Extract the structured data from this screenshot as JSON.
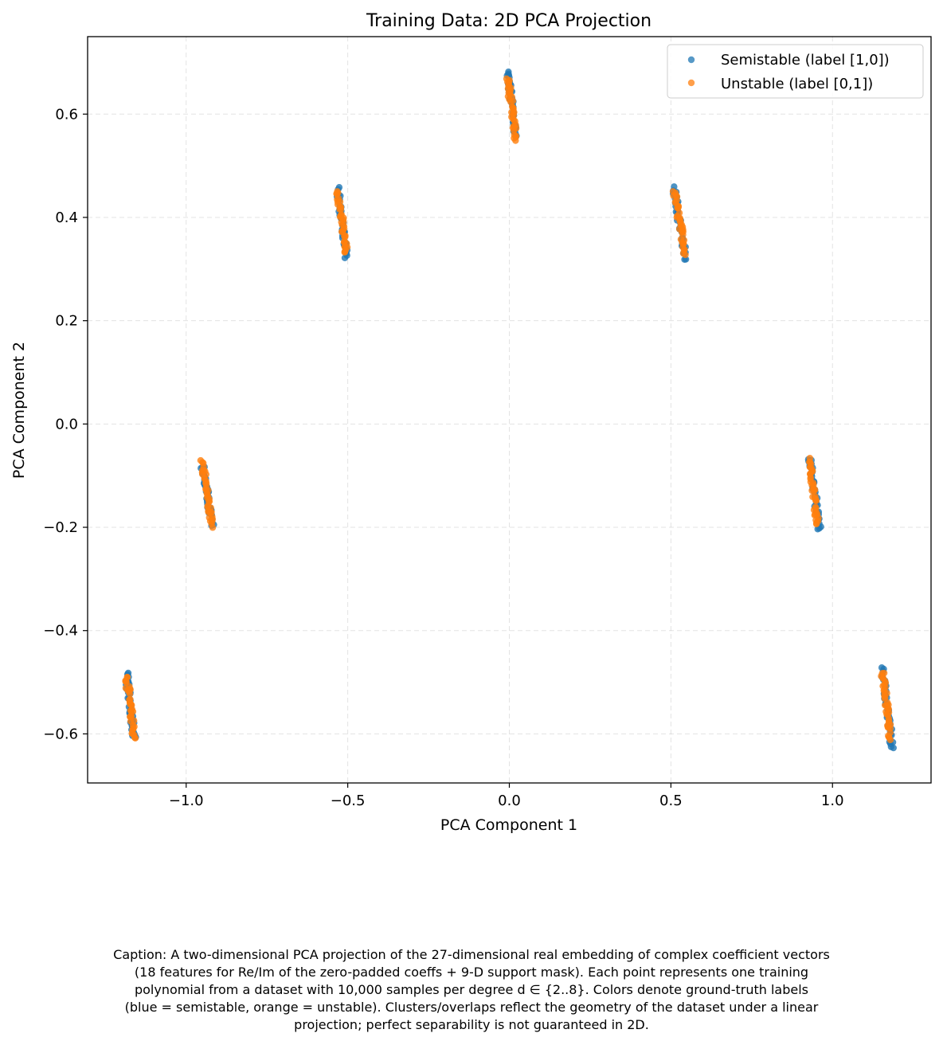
{
  "chart_data": {
    "type": "scatter",
    "title": "Training Data: 2D PCA Projection",
    "xlabel": "PCA Component 1",
    "ylabel": "PCA Component 2",
    "xlim": [
      -1.305,
      1.305
    ],
    "ylim": [
      -0.695,
      0.75
    ],
    "xticks": [
      -1.0,
      -0.5,
      0.0,
      0.5,
      1.0
    ],
    "xtick_labels": [
      "−1.0",
      "−0.5",
      "0.0",
      "0.5",
      "1.0"
    ],
    "yticks": [
      -0.6,
      -0.4,
      -0.2,
      0.0,
      0.2,
      0.4,
      0.6
    ],
    "ytick_labels": [
      "−0.6",
      "−0.4",
      "−0.2",
      "0.0",
      "0.2",
      "0.4",
      "0.6"
    ],
    "grid": true,
    "legend_position": "top-right",
    "series": [
      {
        "name": "Semistable (label [1,0])",
        "color": "#1f77b4",
        "clusters": [
          {
            "x_start": -0.005,
            "y_start": 0.68,
            "x_end": 0.02,
            "y_end": 0.56
          },
          {
            "x_start": 0.51,
            "y_start": 0.455,
            "x_end": 0.545,
            "y_end": 0.32
          },
          {
            "x_start": 0.93,
            "y_start": -0.065,
            "x_end": 0.96,
            "y_end": -0.205
          },
          {
            "x_start": 1.155,
            "y_start": -0.475,
            "x_end": 1.185,
            "y_end": -0.628
          },
          {
            "x_start": -1.185,
            "y_start": -0.485,
            "x_end": -1.16,
            "y_end": -0.605
          },
          {
            "x_start": -0.95,
            "y_start": -0.08,
            "x_end": -0.92,
            "y_end": -0.195
          },
          {
            "x_start": -0.53,
            "y_start": 0.455,
            "x_end": -0.505,
            "y_end": 0.325
          }
        ]
      },
      {
        "name": "Unstable (label [0,1])",
        "color": "#ff7f0e",
        "clusters": [
          {
            "x_start": -0.005,
            "y_start": 0.67,
            "x_end": 0.02,
            "y_end": 0.55
          },
          {
            "x_start": 0.51,
            "y_start": 0.45,
            "x_end": 0.545,
            "y_end": 0.33
          },
          {
            "x_start": 0.93,
            "y_start": -0.068,
            "x_end": 0.955,
            "y_end": -0.195
          },
          {
            "x_start": 1.155,
            "y_start": -0.48,
            "x_end": 1.18,
            "y_end": -0.61
          },
          {
            "x_start": -1.185,
            "y_start": -0.488,
            "x_end": -1.16,
            "y_end": -0.61
          },
          {
            "x_start": -0.95,
            "y_start": -0.072,
            "x_end": -0.92,
            "y_end": -0.198
          },
          {
            "x_start": -0.53,
            "y_start": 0.45,
            "x_end": -0.505,
            "y_end": 0.33
          }
        ]
      }
    ]
  },
  "caption": {
    "lines": [
      "Caption: A two-dimensional PCA projection of the 27-dimensional real embedding of complex coefficient vectors",
      "(18 features for Re/Im of the zero-padded coeffs + 9-D support mask). Each point represents one training",
      "polynomial from a dataset with 10,000 samples per degree d ∈ {2..8}. Colors denote ground-truth labels",
      "(blue = semistable, orange = unstable). Clusters/overlaps reflect the geometry of the dataset under a linear",
      "projection; perfect separability is not guaranteed in 2D."
    ]
  }
}
